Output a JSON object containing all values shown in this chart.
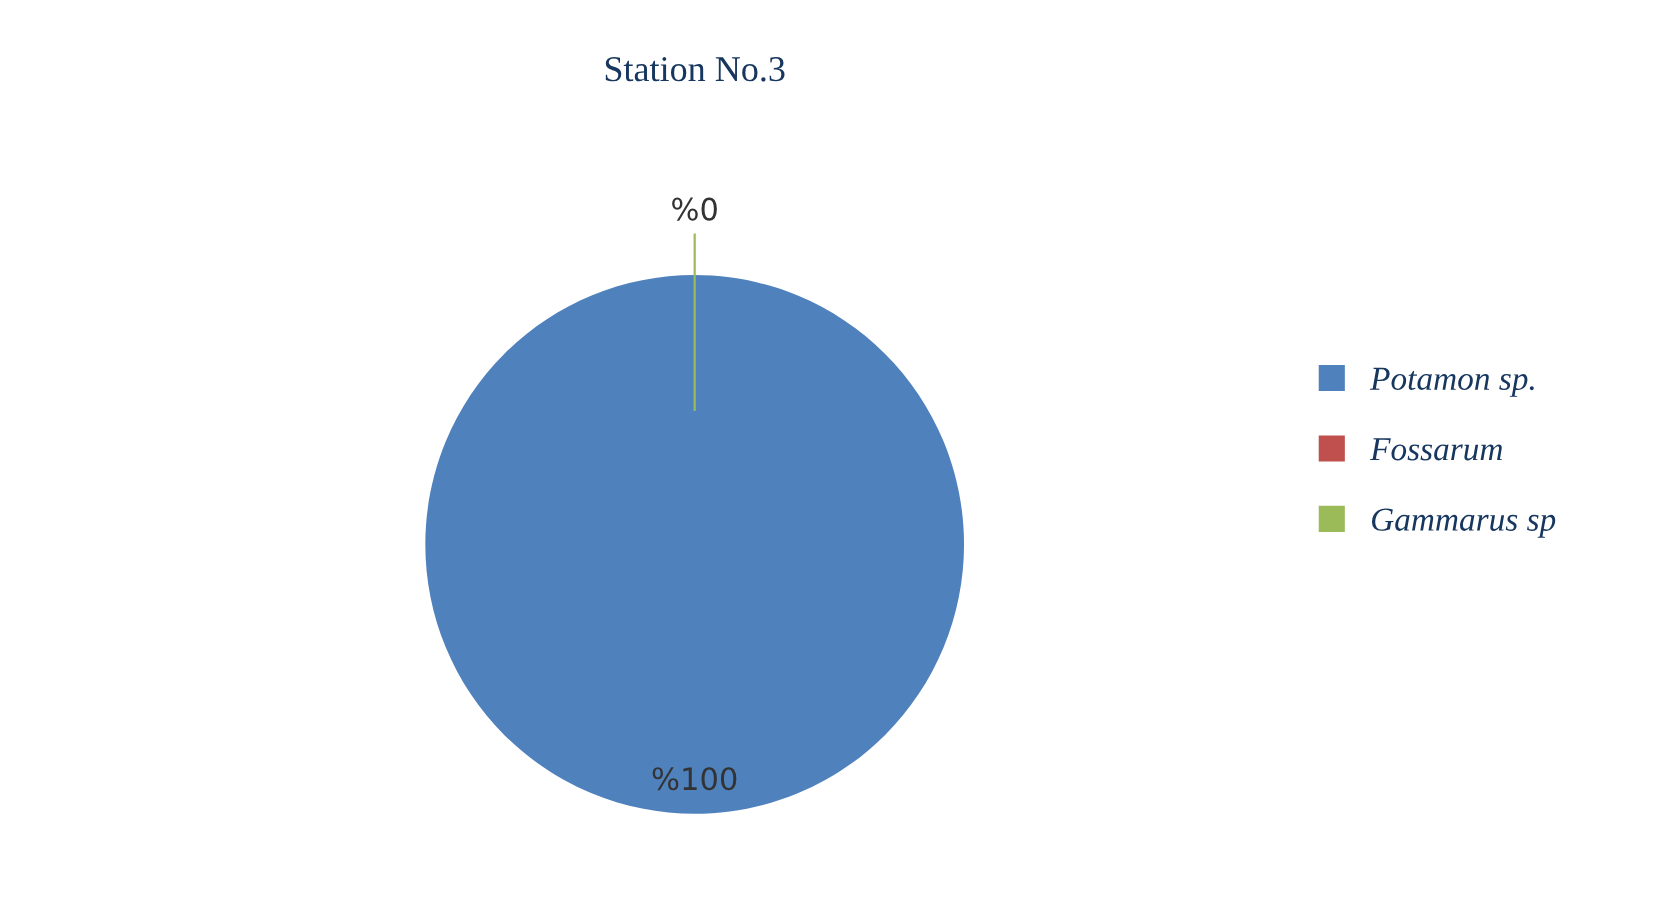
{
  "chart_data": {
    "type": "pie",
    "title": "Station No.3",
    "categories": [
      "Potamon sp.",
      "Fossarum",
      "Gammarus sp"
    ],
    "values": [
      100,
      0,
      0
    ],
    "colors": [
      "#4f81bd",
      "#c0504d",
      "#9bbb59"
    ],
    "value_labels": [
      "%100",
      "%0",
      null
    ],
    "legend": "right"
  }
}
